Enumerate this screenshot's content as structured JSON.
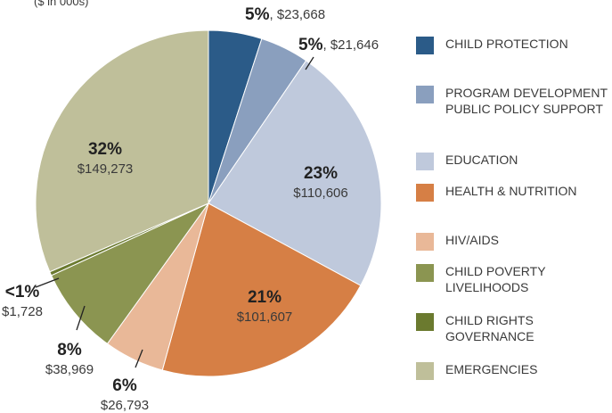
{
  "chart_data": {
    "type": "pie",
    "subtitle": "($ in 000s)",
    "categories": [
      "CHILD PROTECTION",
      "PROGRAM DEVELOPMENT PUBLIC POLICY SUPPORT",
      "EDUCATION",
      "HEALTH & NUTRITION",
      "HIV/AIDS",
      "CHILD POVERTY LIVELIHOODS",
      "CHILD RIGHTS GOVERNANCE",
      "EMERGENCIES"
    ],
    "values": [
      23668,
      21646,
      110606,
      101607,
      26793,
      38969,
      1728,
      149273
    ],
    "value_labels": [
      "$23,668",
      "$21,646",
      "$110,606",
      "$101,607",
      "$26,793",
      "$38,969",
      "$1,728",
      "$149,273"
    ],
    "percent_labels": [
      "5%",
      "5%",
      "23%",
      "21%",
      "6%",
      "8%",
      "<1%",
      "32%"
    ],
    "colors": [
      "#2b5b88",
      "#8a9fbe",
      "#bfc9dc",
      "#d67f45",
      "#e9b898",
      "#8b9551",
      "#6b7a2f",
      "#bfbf9a"
    ]
  }
}
